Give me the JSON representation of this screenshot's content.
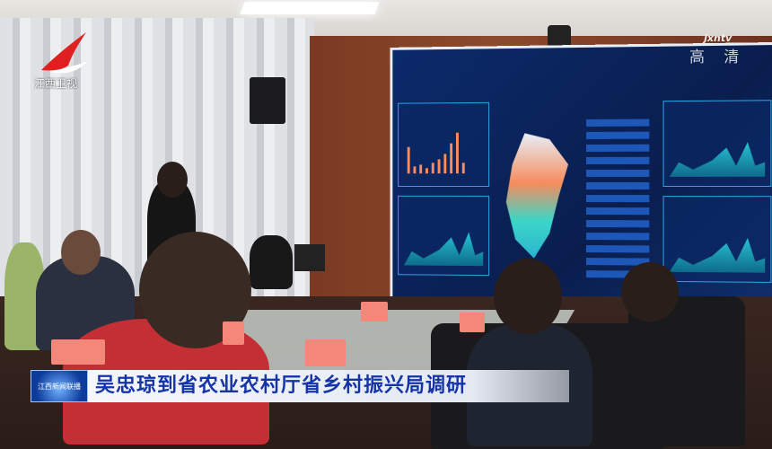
{
  "channel": {
    "logo_text": "江西卫视",
    "brand_color": "#e02020"
  },
  "watermark": {
    "brand": "jxntv",
    "quality": "高 清"
  },
  "lower_third": {
    "program_logo": "江西新闻联播",
    "headline": "吴忠琼到省农业农村厅省乡村振兴局调研",
    "accent": "#1534a8"
  }
}
